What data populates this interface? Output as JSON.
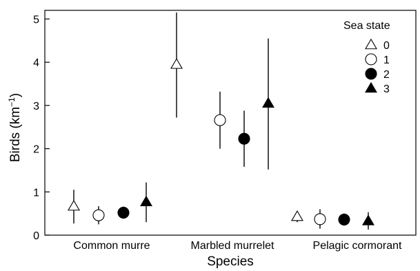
{
  "chart_data": {
    "type": "scatter",
    "title": "",
    "xlabel": "Species",
    "ylabel": "Birds (km",
    "ylabel_exponent": "−1",
    "ylabel_close": ")",
    "categories": [
      "Common murre",
      "Marbled murrelet",
      "Pelagic cormorant"
    ],
    "ylim": [
      0,
      5.2
    ],
    "yticks": [
      0,
      1,
      2,
      3,
      4,
      5
    ],
    "grid": false,
    "legend": {
      "title": "Sea state",
      "placement": "top-right"
    },
    "series": [
      {
        "name": "0",
        "marker": "open-triangle",
        "values": [
          0.67,
          3.95,
          0.43
        ],
        "lower": [
          0.27,
          2.72,
          0.3
        ],
        "upper": [
          1.05,
          5.15,
          0.55
        ]
      },
      {
        "name": "1",
        "marker": "open-circle",
        "values": [
          0.46,
          2.66,
          0.37
        ],
        "lower": [
          0.25,
          2.0,
          0.15
        ],
        "upper": [
          0.67,
          3.32,
          0.6
        ]
      },
      {
        "name": "2",
        "marker": "filled-circle",
        "values": [
          0.52,
          2.23,
          0.36
        ],
        "lower": [
          0.38,
          1.58,
          0.22
        ],
        "upper": [
          0.66,
          2.88,
          0.5
        ]
      },
      {
        "name": "3",
        "marker": "filled-triangle",
        "values": [
          0.77,
          3.05,
          0.33
        ],
        "lower": [
          0.3,
          1.52,
          0.13
        ],
        "upper": [
          1.22,
          4.55,
          0.53
        ]
      }
    ]
  }
}
